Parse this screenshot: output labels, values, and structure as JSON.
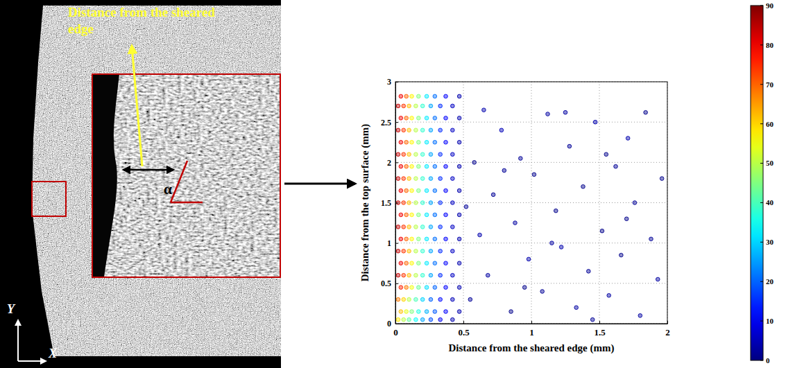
{
  "micrograph": {
    "annotation": "Distance from the sheared edge",
    "angle_symbol": "α",
    "axis_x": "X",
    "axis_y": "Y"
  },
  "chart_data": {
    "type": "scatter",
    "xlabel": "Distance from the sheared edge (mm)",
    "ylabel": "Distance from the top surface (mm)",
    "xlim": [
      0,
      2
    ],
    "ylim": [
      0,
      3
    ],
    "xticks": [
      0,
      0.5,
      1,
      1.5,
      2
    ],
    "yticks": [
      0,
      0.5,
      1,
      1.5,
      2,
      2.5,
      3
    ],
    "grid": true,
    "marker": "o",
    "colorbar": {
      "range": [
        0,
        90
      ],
      "ticks": [
        0,
        10,
        20,
        30,
        40,
        50,
        60,
        70,
        80,
        90
      ]
    },
    "x": [
      0.02,
      0.06,
      0.1,
      0.15,
      0.2,
      0.26,
      0.33,
      0.42,
      0.04,
      0.08,
      0.12,
      0.17,
      0.23,
      0.29,
      0.37,
      0.47,
      0.02,
      0.06,
      0.1,
      0.15,
      0.2,
      0.26,
      0.33,
      0.42,
      0.04,
      0.08,
      0.12,
      0.17,
      0.23,
      0.29,
      0.37,
      0.47,
      0.02,
      0.06,
      0.1,
      0.15,
      0.2,
      0.26,
      0.33,
      0.42,
      0.04,
      0.08,
      0.12,
      0.17,
      0.23,
      0.29,
      0.37,
      0.47,
      0.02,
      0.06,
      0.1,
      0.15,
      0.2,
      0.26,
      0.33,
      0.42,
      0.04,
      0.08,
      0.12,
      0.17,
      0.23,
      0.29,
      0.37,
      0.47,
      0.02,
      0.06,
      0.1,
      0.15,
      0.2,
      0.26,
      0.33,
      0.42,
      0.04,
      0.08,
      0.12,
      0.17,
      0.23,
      0.29,
      0.37,
      0.47,
      0.02,
      0.06,
      0.1,
      0.15,
      0.2,
      0.26,
      0.33,
      0.42,
      0.04,
      0.08,
      0.12,
      0.17,
      0.23,
      0.29,
      0.37,
      0.47,
      0.02,
      0.06,
      0.1,
      0.15,
      0.2,
      0.26,
      0.33,
      0.42,
      0.04,
      0.08,
      0.12,
      0.17,
      0.23,
      0.29,
      0.37,
      0.47,
      0.02,
      0.06,
      0.1,
      0.15,
      0.2,
      0.26,
      0.33,
      0.42,
      0.04,
      0.08,
      0.12,
      0.17,
      0.23,
      0.29,
      0.37,
      0.47,
      0.02,
      0.06,
      0.1,
      0.15,
      0.2,
      0.26,
      0.33,
      0.42,
      0.04,
      0.08,
      0.12,
      0.17,
      0.23,
      0.29,
      0.37,
      0.47,
      0.02,
      0.06,
      0.1,
      0.15,
      0.2,
      0.26,
      0.33,
      0.42,
      0.04,
      0.08,
      0.12,
      0.17,
      0.23,
      0.29,
      0.37,
      0.47,
      0.55,
      0.62,
      0.58,
      0.68,
      0.72,
      0.78,
      0.85,
      0.88,
      0.92,
      0.98,
      1.02,
      1.08,
      1.12,
      1.18,
      1.22,
      1.28,
      1.33,
      1.38,
      1.42,
      1.47,
      1.52,
      1.57,
      1.62,
      1.66,
      1.71,
      1.76,
      1.8,
      1.84,
      1.88,
      1.93,
      1.96,
      0.52,
      0.65,
      0.95,
      1.25,
      1.45,
      1.7,
      0.8,
      1.15,
      1.55
    ],
    "values": [
      0.05,
      0.05,
      0.05,
      0.05,
      0.05,
      0.05,
      0.05,
      0.05,
      0.15,
      0.15,
      0.15,
      0.15,
      0.15,
      0.15,
      0.15,
      0.15,
      0.3,
      0.3,
      0.3,
      0.3,
      0.3,
      0.3,
      0.3,
      0.3,
      0.45,
      0.45,
      0.45,
      0.45,
      0.45,
      0.45,
      0.45,
      0.45,
      0.6,
      0.6,
      0.6,
      0.6,
      0.6,
      0.6,
      0.6,
      0.6,
      0.75,
      0.75,
      0.75,
      0.75,
      0.75,
      0.75,
      0.75,
      0.75,
      0.9,
      0.9,
      0.9,
      0.9,
      0.9,
      0.9,
      0.9,
      0.9,
      1.05,
      1.05,
      1.05,
      1.05,
      1.05,
      1.05,
      1.05,
      1.05,
      1.2,
      1.2,
      1.2,
      1.2,
      1.2,
      1.2,
      1.2,
      1.2,
      1.35,
      1.35,
      1.35,
      1.35,
      1.35,
      1.35,
      1.35,
      1.35,
      1.5,
      1.5,
      1.5,
      1.5,
      1.5,
      1.5,
      1.5,
      1.5,
      1.65,
      1.65,
      1.65,
      1.65,
      1.65,
      1.65,
      1.65,
      1.65,
      1.8,
      1.8,
      1.8,
      1.8,
      1.8,
      1.8,
      1.8,
      1.8,
      1.95,
      1.95,
      1.95,
      1.95,
      1.95,
      1.95,
      1.95,
      1.95,
      2.1,
      2.1,
      2.1,
      2.1,
      2.1,
      2.1,
      2.1,
      2.1,
      2.25,
      2.25,
      2.25,
      2.25,
      2.25,
      2.25,
      2.25,
      2.25,
      2.4,
      2.4,
      2.4,
      2.4,
      2.4,
      2.4,
      2.4,
      2.4,
      2.55,
      2.55,
      2.55,
      2.55,
      2.55,
      2.55,
      2.55,
      2.55,
      2.7,
      2.7,
      2.7,
      2.7,
      2.7,
      2.7,
      2.7,
      2.7,
      2.82,
      2.82,
      2.82,
      2.82,
      2.82,
      2.82,
      2.82,
      2.82,
      0.3,
      1.1,
      2.0,
      0.6,
      1.6,
      2.4,
      0.15,
      1.25,
      2.05,
      0.8,
      1.85,
      0.4,
      2.6,
      1.4,
      0.95,
      2.2,
      0.2,
      1.7,
      0.65,
      2.5,
      1.15,
      0.35,
      1.95,
      0.85,
      2.3,
      1.5,
      0.1,
      2.62,
      1.05,
      0.55,
      1.8,
      1.45,
      2.65,
      0.45,
      2.62,
      0.05,
      1.3,
      1.9,
      1.0,
      2.1
    ],
    "angles": [
      58,
      50,
      42,
      34,
      26,
      18,
      10,
      4,
      62,
      54,
      45,
      36,
      27,
      19,
      11,
      4,
      68,
      60,
      50,
      40,
      30,
      20,
      12,
      5,
      76,
      68,
      55,
      43,
      31,
      20,
      11,
      4,
      84,
      74,
      62,
      50,
      38,
      26,
      15,
      6,
      80,
      70,
      57,
      45,
      32,
      21,
      11,
      4,
      84,
      74,
      62,
      50,
      38,
      26,
      15,
      6,
      80,
      70,
      57,
      45,
      32,
      21,
      11,
      4,
      84,
      74,
      62,
      50,
      38,
      26,
      15,
      6,
      80,
      70,
      57,
      45,
      32,
      21,
      11,
      4,
      84,
      74,
      62,
      50,
      38,
      26,
      15,
      6,
      80,
      70,
      57,
      45,
      32,
      21,
      11,
      4,
      84,
      74,
      62,
      50,
      38,
      26,
      15,
      6,
      80,
      70,
      57,
      45,
      32,
      21,
      11,
      4,
      84,
      74,
      62,
      50,
      38,
      26,
      15,
      6,
      80,
      70,
      57,
      45,
      32,
      21,
      11,
      4,
      84,
      74,
      62,
      50,
      38,
      26,
      15,
      6,
      80,
      70,
      57,
      45,
      32,
      21,
      11,
      4,
      84,
      74,
      62,
      50,
      38,
      26,
      15,
      6,
      80,
      70,
      57,
      45,
      32,
      21,
      11,
      4,
      2,
      4,
      1,
      3,
      2,
      5,
      1,
      3,
      2,
      4,
      1,
      2,
      3,
      1,
      4,
      2,
      3,
      1,
      2,
      4,
      1,
      3,
      2,
      1,
      4,
      2,
      3,
      1,
      2,
      3,
      1,
      2,
      4,
      1,
      3,
      2,
      1,
      2,
      3,
      1
    ]
  }
}
